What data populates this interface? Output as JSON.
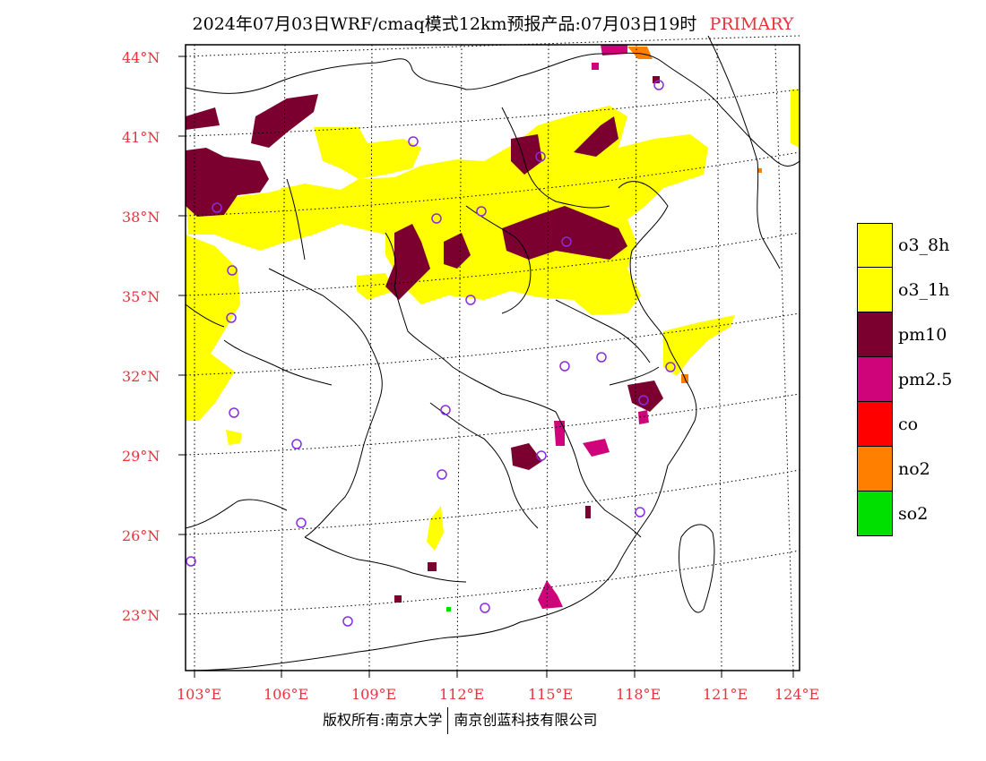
{
  "title": {
    "main": "2024年07月03日WRF/cmaq模式12km预报产品:07月03日19时",
    "tag": "PRIMARY"
  },
  "axes": {
    "latitudes": [
      "44°N",
      "41°N",
      "38°N",
      "35°N",
      "32°N",
      "29°N",
      "26°N",
      "23°N"
    ],
    "longitudes": [
      "103°E",
      "106°E",
      "109°E",
      "112°E",
      "115°E",
      "118°E",
      "121°E",
      "124°E"
    ]
  },
  "legend": [
    {
      "label": "o3_8h",
      "color": "#ffff00"
    },
    {
      "label": "o3_1h",
      "color": "#ffff00"
    },
    {
      "label": "pm10",
      "color": "#7b0030"
    },
    {
      "label": "pm2.5",
      "color": "#d0047a"
    },
    {
      "label": "co",
      "color": "#ff0000"
    },
    {
      "label": "no2",
      "color": "#ff8000"
    },
    {
      "label": "so2",
      "color": "#00e000"
    }
  ],
  "footer": {
    "left": "版权所有:南京大学",
    "right": "南京创蓝科技有限公司"
  },
  "colors": {
    "o3": "#ffff00",
    "pm10": "#7b0030",
    "pm25": "#d0047a",
    "no2": "#ff8000",
    "so2": "#00e000",
    "station": "#8a2be2",
    "label_red": "#e8333c"
  }
}
